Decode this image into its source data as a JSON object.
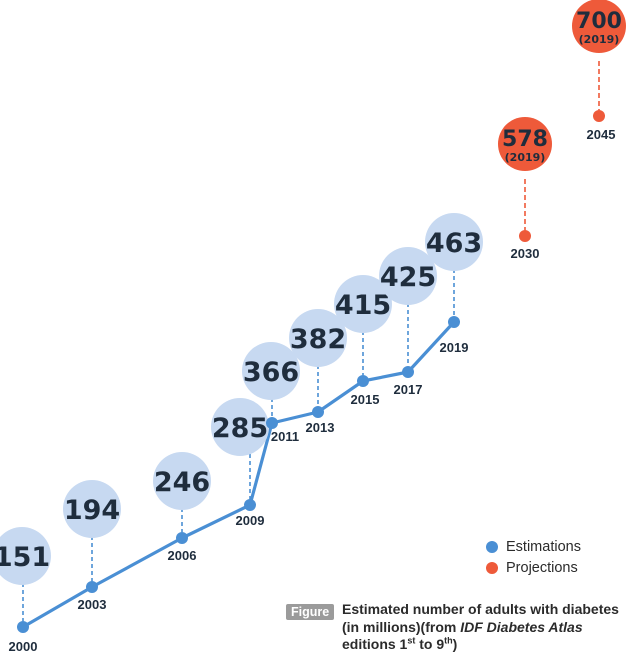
{
  "chart_data": {
    "type": "line",
    "series": [
      {
        "name": "Estimations",
        "color": "#4a8fd4",
        "x": [
          2000,
          2003,
          2006,
          2009,
          2011,
          2013,
          2015,
          2017,
          2019
        ],
        "values": [
          151,
          194,
          246,
          285,
          366,
          382,
          415,
          425,
          463
        ],
        "labels": [
          "151",
          "194",
          "246",
          "285",
          "366",
          "382",
          "415",
          "425",
          "463"
        ],
        "x_labels": [
          "2000",
          "2003",
          "2006",
          "2009",
          "2011",
          "2013",
          "2015",
          "2017",
          "2019"
        ]
      },
      {
        "name": "Projections",
        "color": "#ee5a3a",
        "x": [
          2030,
          2045
        ],
        "values": [
          578,
          700
        ],
        "labels": [
          "578",
          "700"
        ],
        "sublabels": [
          "(2019)",
          "(2019)"
        ],
        "x_labels": [
          "2030",
          "2045"
        ]
      }
    ],
    "legend": [
      "Estimations",
      "Projections"
    ],
    "legend_position": "bottom-right"
  },
  "caption": {
    "tag": "Figure",
    "text_1": "Estimated number of adults with diabetes (in millions)(from ",
    "italic": "IDF Diabetes Atlas",
    "text_2": " editions 1",
    "sup_1": "st",
    "text_3": " to 9",
    "sup_2": "th",
    "text_4": ")"
  },
  "colors": {
    "estimation_line": "#4a8fd4",
    "estimation_bubble": "#c7d9f1",
    "projection": "#ee5a3a",
    "text": "#1f2d3d"
  }
}
